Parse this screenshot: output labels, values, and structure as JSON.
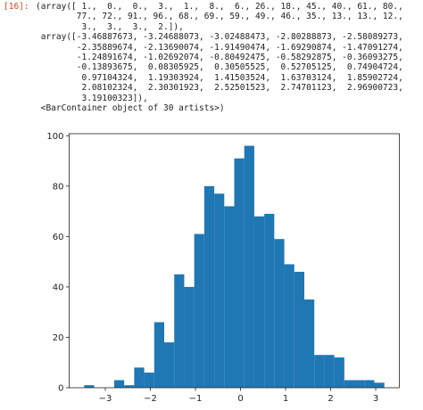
{
  "prompt": "[16]:",
  "output": {
    "lines": [
      "(array([ 1.,  0.,  0.,  3.,  1.,  8.,  6., 26., 18., 45., 40., 61., 80.,",
      "        77., 72., 91., 96., 68., 69., 59., 49., 46., 35., 13., 13., 12.,",
      "         3.,  3.,  3.,  2.]),",
      " array([-3.46887673, -3.24688073, -3.02488473, -2.80288873, -2.58089273,",
      "        -2.35889674, -2.13690074, -1.91490474, -1.69290874, -1.47091274,",
      "        -1.24891674, -1.02692074, -0.80492475, -0.58292875, -0.36093275,",
      "        -0.13893675,  0.08305925,  0.30505525,  0.52705125,  0.74904724,",
      "         0.97104324,  1.19303924,  1.41503524,  1.63703124,  1.85902724,",
      "         2.08102324,  2.30301923,  2.52501523,  2.74701123,  2.96900723,",
      "         3.19100323]),",
      " <BarContainer object of 30 artists>)"
    ]
  },
  "chart_data": {
    "type": "histogram",
    "color": "#1f77b4",
    "bins": [
      -3.46887673,
      -3.24688073,
      -3.02488473,
      -2.80288873,
      -2.58089273,
      -2.35889674,
      -2.13690074,
      -1.91490474,
      -1.69290874,
      -1.47091274,
      -1.24891674,
      -1.02692074,
      -0.80492475,
      -0.58292875,
      -0.36093275,
      -0.13893675,
      0.08305925,
      0.30505525,
      0.52705125,
      0.74904724,
      0.97104324,
      1.19303924,
      1.41503524,
      1.63703124,
      1.85902724,
      2.08102324,
      2.30301923,
      2.52501523,
      2.74701123,
      2.96900723,
      3.19100323
    ],
    "values": [
      1,
      0,
      0,
      3,
      1,
      8,
      6,
      26,
      18,
      45,
      40,
      61,
      80,
      77,
      72,
      91,
      96,
      68,
      69,
      59,
      49,
      46,
      35,
      13,
      13,
      12,
      3,
      3,
      3,
      2
    ],
    "xlim": [
      -3.802,
      3.524
    ],
    "xticks": [
      {
        "value": -3,
        "label": "−3"
      },
      {
        "value": -2,
        "label": "−2"
      },
      {
        "value": -1,
        "label": "−1"
      },
      0,
      1,
      2,
      3
    ],
    "ylim": [
      0,
      100.8
    ],
    "yticks": [
      0,
      20,
      40,
      60,
      80,
      100
    ]
  }
}
